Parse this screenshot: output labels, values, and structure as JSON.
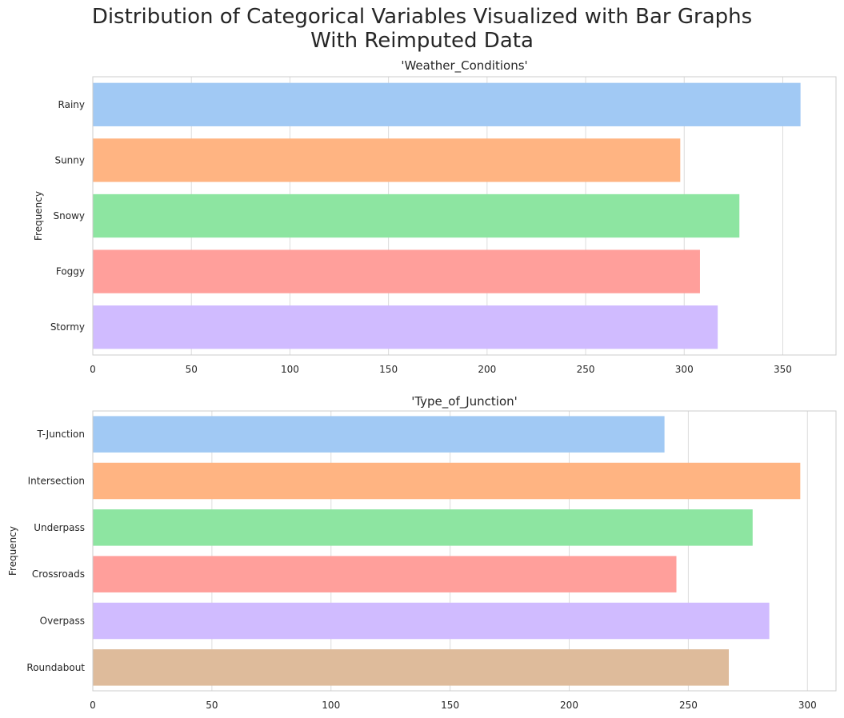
{
  "figure": {
    "title_line1": "Distribution of Categorical Variables Visualized with Bar Graphs",
    "title_line2": "With Reimputed Data"
  },
  "chart_data": [
    {
      "type": "bar",
      "orientation": "horizontal",
      "title": "'Weather_Conditions'",
      "ylabel": "Frequency",
      "xlabel": "",
      "categories": [
        "Rainy",
        "Sunny",
        "Snowy",
        "Foggy",
        "Stormy"
      ],
      "values": [
        359,
        298,
        328,
        308,
        317
      ],
      "colors": [
        "#a1c9f4",
        "#ffb482",
        "#8de5a1",
        "#ff9f9b",
        "#d0bbff"
      ],
      "xlim": [
        0,
        377
      ],
      "xticks": [
        0,
        50,
        100,
        150,
        200,
        250,
        300,
        350
      ],
      "grid": true
    },
    {
      "type": "bar",
      "orientation": "horizontal",
      "title": "'Type_of_Junction'",
      "ylabel": "Frequency",
      "xlabel": "",
      "categories": [
        "T-Junction",
        "Intersection",
        "Underpass",
        "Crossroads",
        "Overpass",
        "Roundabout"
      ],
      "values": [
        240,
        297,
        277,
        245,
        284,
        267
      ],
      "colors": [
        "#a1c9f4",
        "#ffb482",
        "#8de5a1",
        "#ff9f9b",
        "#d0bbff",
        "#debb9b"
      ],
      "xlim": [
        0,
        312
      ],
      "xticks": [
        0,
        50,
        100,
        150,
        200,
        250,
        300
      ],
      "grid": true
    }
  ]
}
